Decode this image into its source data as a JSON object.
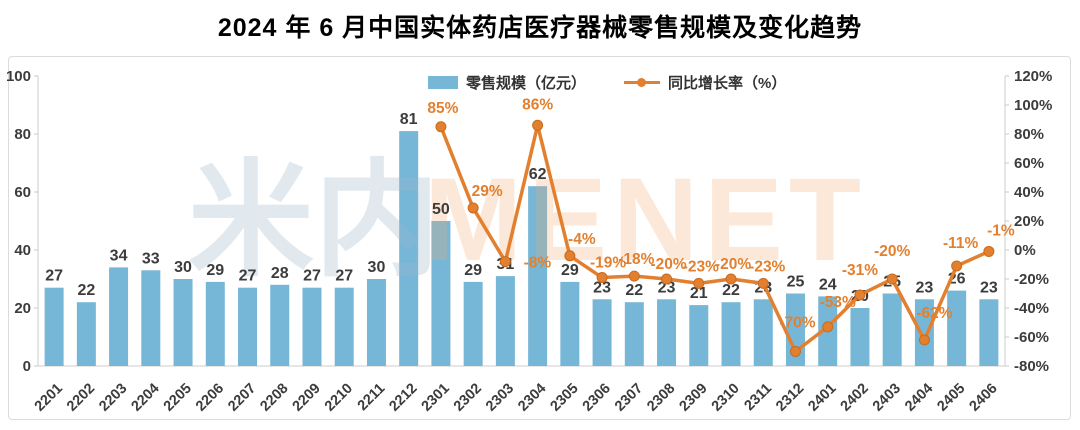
{
  "title": "2024 年 6 月中国实体药店医疗器械零售规模及变化趋势",
  "legend": {
    "bar_label": "零售规模（亿元）",
    "line_label": "同比增长率（%）"
  },
  "watermark": {
    "cn": "米内",
    "en": "MENET"
  },
  "colors": {
    "bar": "#76B7D8",
    "line": "#E2802F",
    "bar_label": "#3c3c3c",
    "axis_text": "#3c3c3c",
    "axis_line": "#d6d6d6"
  },
  "chart_data": {
    "type": "bar+line",
    "title": "2024 年 6 月中国实体药店医疗器械零售规模及变化趋势",
    "categories": [
      "2201",
      "2202",
      "2203",
      "2204",
      "2205",
      "2206",
      "2207",
      "2208",
      "2209",
      "2210",
      "2211",
      "2212",
      "2301",
      "2302",
      "2303",
      "2304",
      "2305",
      "2306",
      "2307",
      "2308",
      "2309",
      "2310",
      "2311",
      "2312",
      "2401",
      "2402",
      "2403",
      "2404",
      "2405",
      "2406"
    ],
    "series": [
      {
        "name": "零售规模（亿元）",
        "type": "bar",
        "axis": "left",
        "values": [
          27,
          22,
          34,
          33,
          30,
          29,
          27,
          28,
          27,
          27,
          30,
          81,
          50,
          29,
          31,
          62,
          29,
          23,
          22,
          23,
          21,
          22,
          23,
          25,
          24,
          20,
          25,
          23,
          26,
          23
        ]
      },
      {
        "name": "同比增长率（%）",
        "type": "line",
        "axis": "right",
        "start_index": 12,
        "values": [
          85,
          29,
          -8,
          86,
          -4,
          -19,
          -18,
          -20,
          -23,
          -20,
          -23,
          -70,
          -53,
          -31,
          -20,
          -62,
          -11,
          -1
        ],
        "labels": [
          "85%",
          "29%",
          "-8%",
          "86%",
          "-4%",
          "-19%",
          "-18%",
          "-20%",
          "-23%",
          "-20%",
          "-23%",
          "-70%",
          "-53%",
          "-31%",
          "-20%",
          "-62%",
          "-11%",
          "-1%"
        ]
      }
    ],
    "left_axis": {
      "min": 0,
      "max": 100,
      "tick_values": [
        0,
        20,
        40,
        60,
        80,
        100
      ]
    },
    "right_axis": {
      "min": -80,
      "max": 120,
      "ticks": [
        "120%",
        "100%",
        "80%",
        "60%",
        "40%",
        "20%",
        "0%",
        "-20%",
        "-40%",
        "-60%",
        "-80%"
      ]
    },
    "grid": "off",
    "legend_position": "top-center"
  }
}
